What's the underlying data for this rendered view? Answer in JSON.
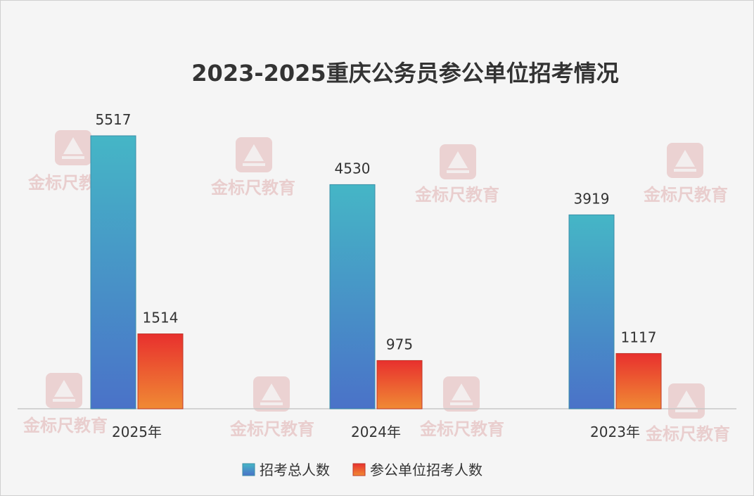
{
  "chart_data": {
    "type": "bar",
    "title": "2023-2025重庆公务员参公单位招考情况",
    "categories": [
      "2025年",
      "2024年",
      "2023年"
    ],
    "series": [
      {
        "name": "招考总人数",
        "values": [
          5517,
          4530,
          3919
        ]
      },
      {
        "name": "参公单位招考人数",
        "values": [
          1514,
          975,
          1117
        ]
      }
    ],
    "ylim": [
      0,
      5517
    ],
    "grid": false,
    "legend_position": "bottom-center",
    "data_labels": true,
    "watermark_text": "金标尺教育",
    "colors": {
      "series1_top": "#45b6c6",
      "series1_bottom": "#4a72c8",
      "series2_top": "#e8302e",
      "series2_bottom": "#f08a34",
      "text": "#333333",
      "axis": "#c8c8c8",
      "watermark": "#e0a8a8"
    }
  }
}
